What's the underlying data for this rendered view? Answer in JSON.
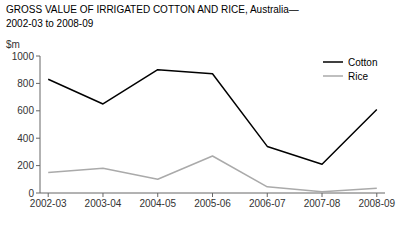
{
  "chart_data": {
    "type": "line",
    "title": "GROSS VALUE OF IRRIGATED COTTON AND RICE, Australia—",
    "subtitle": "2002-03 to 2008-09",
    "ylabel": "$m",
    "categories": [
      "2002-03",
      "2003-04",
      "2004-05",
      "2005-06",
      "2006-07",
      "2007-08",
      "2008-09"
    ],
    "series": [
      {
        "name": "Cotton",
        "color": "#000000",
        "values": [
          830,
          650,
          900,
          870,
          340,
          210,
          610
        ]
      },
      {
        "name": "Rice",
        "color": "#aaaaaa",
        "values": [
          150,
          180,
          100,
          270,
          45,
          10,
          35
        ]
      }
    ],
    "ylim": [
      0,
      1000
    ],
    "yticks": [
      0,
      200,
      400,
      600,
      800,
      1000
    ],
    "grid": false,
    "legend": "upper right"
  }
}
